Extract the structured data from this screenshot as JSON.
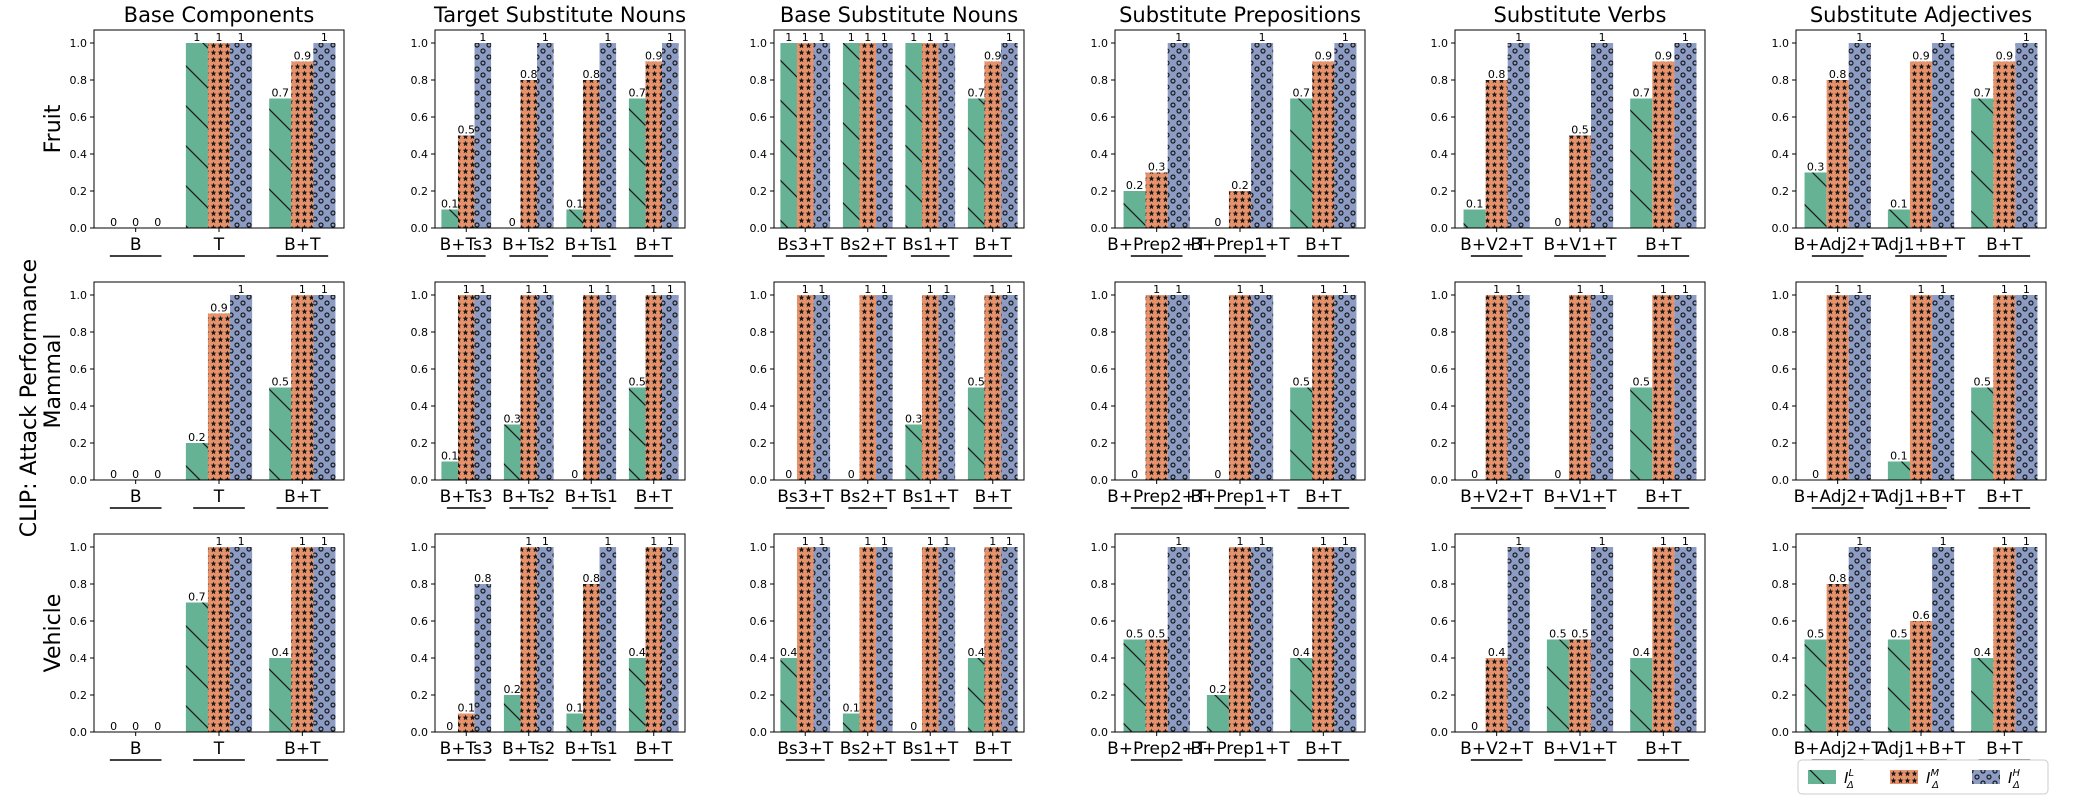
{
  "colors": {
    "low": "#66b295",
    "mid": "#e8926c",
    "high": "#8c9cc5"
  },
  "legend": {
    "labels": [
      "I",
      "I",
      "I"
    ],
    "superscripts": [
      "L",
      "M",
      "H"
    ],
    "subscripts": [
      "Δ",
      "Δ",
      "Δ"
    ]
  },
  "chart_data": {
    "type": "bar",
    "supylabel": "CLIP: Attack Performance",
    "rows": [
      "Fruit",
      "Mammal",
      "Vehicle"
    ],
    "ylim": [
      0,
      1.0
    ],
    "yticks": [
      "0.0",
      "0.2",
      "0.4",
      "0.6",
      "0.8",
      "1.0"
    ],
    "series_names": [
      "I_Δ^L",
      "I_Δ^M",
      "I_Δ^H"
    ],
    "panels": [
      {
        "title": "Base Components",
        "categories": [
          "B",
          "T",
          "B+T"
        ],
        "values": [
          [
            [
              0,
              0,
              0
            ],
            [
              1,
              1,
              1
            ],
            [
              0.7,
              0.9,
              1
            ]
          ],
          [
            [
              0,
              0,
              0
            ],
            [
              0.2,
              0.9,
              1
            ],
            [
              0.5,
              1,
              1
            ]
          ],
          [
            [
              0,
              0,
              0
            ],
            [
              0.7,
              1,
              1
            ],
            [
              0.4,
              1,
              1
            ]
          ]
        ]
      },
      {
        "title": "Target Substitute Nouns",
        "categories": [
          "B+Ts3",
          "B+Ts2",
          "B+Ts1",
          "B+T"
        ],
        "values": [
          [
            [
              0.1,
              0.5,
              1
            ],
            [
              0,
              0.8,
              1
            ],
            [
              0.1,
              0.8,
              1
            ],
            [
              0.7,
              0.9,
              1
            ]
          ],
          [
            [
              0.1,
              1,
              1
            ],
            [
              0.3,
              1,
              1
            ],
            [
              0,
              1,
              1
            ],
            [
              0.5,
              1,
              1
            ]
          ],
          [
            [
              0,
              0.1,
              0.8
            ],
            [
              0.2,
              1,
              1
            ],
            [
              0.1,
              0.8,
              1
            ],
            [
              0.4,
              1,
              1
            ]
          ]
        ]
      },
      {
        "title": "Base Substitute Nouns",
        "categories": [
          "Bs3+T",
          "Bs2+T",
          "Bs1+T",
          "B+T"
        ],
        "values": [
          [
            [
              1,
              1,
              1
            ],
            [
              1,
              1,
              1
            ],
            [
              1,
              1,
              1
            ],
            [
              0.7,
              0.9,
              1
            ]
          ],
          [
            [
              0,
              1,
              1
            ],
            [
              0,
              1,
              1
            ],
            [
              0.3,
              1,
              1
            ],
            [
              0.5,
              1,
              1
            ]
          ],
          [
            [
              0.4,
              1,
              1
            ],
            [
              0.1,
              1,
              1
            ],
            [
              0,
              1,
              1
            ],
            [
              0.4,
              1,
              1
            ]
          ]
        ]
      },
      {
        "title": "Substitute Prepositions",
        "categories": [
          "B+Prep2+T",
          "B+Prep1+T",
          "B+T"
        ],
        "values": [
          [
            [
              0.2,
              0.3,
              1
            ],
            [
              0,
              0.2,
              1
            ],
            [
              0.7,
              0.9,
              1
            ]
          ],
          [
            [
              0,
              1,
              1
            ],
            [
              0,
              1,
              1
            ],
            [
              0.5,
              1,
              1
            ]
          ],
          [
            [
              0.5,
              0.5,
              1
            ],
            [
              0.2,
              1,
              1
            ],
            [
              0.4,
              1,
              1
            ]
          ]
        ]
      },
      {
        "title": "Substitute Verbs",
        "categories": [
          "B+V2+T",
          "B+V1+T",
          "B+T"
        ],
        "values": [
          [
            [
              0.1,
              0.8,
              1
            ],
            [
              0,
              0.5,
              1
            ],
            [
              0.7,
              0.9,
              1
            ]
          ],
          [
            [
              0,
              1,
              1
            ],
            [
              0,
              1,
              1
            ],
            [
              0.5,
              1,
              1
            ]
          ],
          [
            [
              0,
              0.4,
              1
            ],
            [
              0.5,
              0.5,
              1
            ],
            [
              0.4,
              1,
              1
            ]
          ]
        ]
      },
      {
        "title": "Substitute Adjectives",
        "categories": [
          "B+Adj2+T",
          "Adj1+B+T",
          "B+T"
        ],
        "values": [
          [
            [
              0.3,
              0.8,
              1
            ],
            [
              0.1,
              0.9,
              1
            ],
            [
              0.7,
              0.9,
              1
            ]
          ],
          [
            [
              0,
              1,
              1
            ],
            [
              0.1,
              1,
              1
            ],
            [
              0.5,
              1,
              1
            ]
          ],
          [
            [
              0.5,
              0.8,
              1
            ],
            [
              0.5,
              0.6,
              1
            ],
            [
              0.4,
              1,
              1
            ]
          ]
        ]
      }
    ]
  }
}
